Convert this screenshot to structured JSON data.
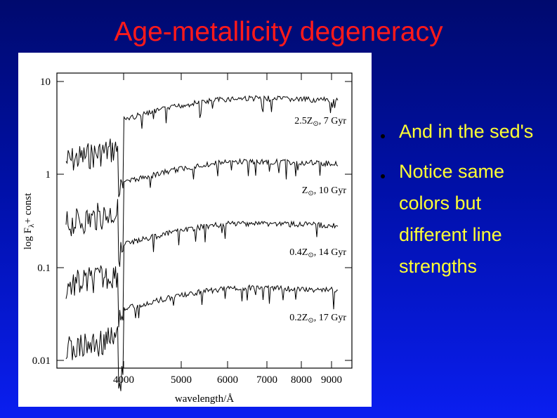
{
  "slide": {
    "title": "Age-metallicity degeneracy",
    "bullets": [
      {
        "text": "And in the sed's"
      },
      {
        "text": "Notice same colors but different line strengths"
      }
    ],
    "colors": {
      "title": "#ff1a1a",
      "bullet_text": "#ffff33"
    }
  },
  "figure": {
    "xlabel": "wavelength/Å",
    "ylabel_main": "log F",
    "ylabel_sub": "λ",
    "ylabel_rest": "+ const",
    "yticks": [
      "10",
      "1",
      "0.1",
      "0.01"
    ],
    "xticks": [
      "4000",
      "5000",
      "6000",
      "7000",
      "8000",
      "9000"
    ],
    "spectra": [
      {
        "label_pre": "2.5Z",
        "label_post": ",  7 Gyr"
      },
      {
        "label_pre": "Z",
        "label_post": ",  10 Gyr"
      },
      {
        "label_pre": "0.4Z",
        "label_post": ",  14 Gyr"
      },
      {
        "label_pre": "0.2Z",
        "label_post": ",  17 Gyr"
      }
    ],
    "sun_symbol": "⊙"
  }
}
